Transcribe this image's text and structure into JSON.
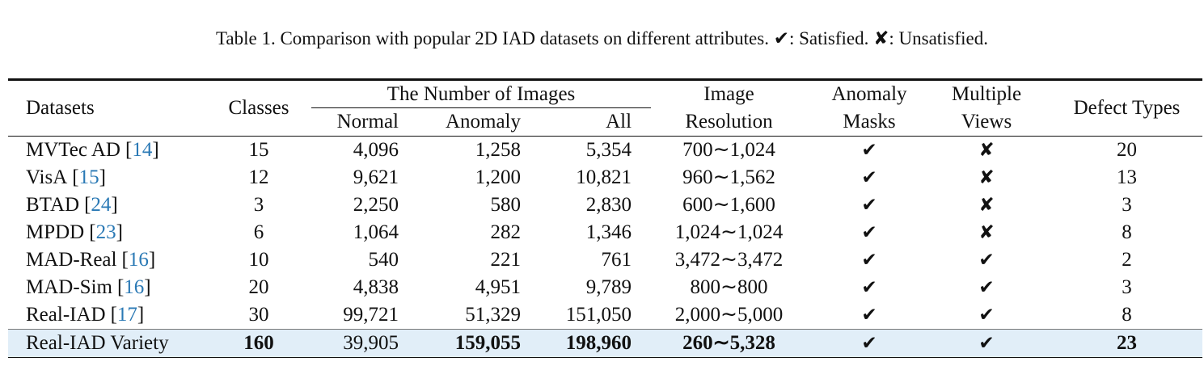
{
  "caption": "Table 1. Comparison with popular 2D IAD datasets on different attributes. ✔: Satisfied. ✘: Unsatisfied.",
  "table": {
    "header": {
      "datasets": "Datasets",
      "classes": "Classes",
      "images_group": "The Number of Images",
      "normal": "Normal",
      "anomaly": "Anomaly",
      "all": "All",
      "resolution": [
        "Image",
        "Resolution"
      ],
      "masks": [
        "Anomaly",
        "Masks"
      ],
      "views": [
        "Multiple",
        "Views"
      ],
      "defect_types": "Defect Types"
    },
    "rows": [
      {
        "name": "MVTec AD",
        "ref": "[14]",
        "cells": [
          "15",
          "4,096",
          "1,258",
          "5,354",
          "700∼1,024",
          "✔",
          "✘",
          "20"
        ]
      },
      {
        "name": "VisA",
        "ref": "[15]",
        "cells": [
          "12",
          "9,621",
          "1,200",
          "10,821",
          "960∼1,562",
          "✔",
          "✘",
          "13"
        ]
      },
      {
        "name": "BTAD",
        "ref": "[24]",
        "cells": [
          "3",
          "2,250",
          "580",
          "2,830",
          "600∼1,600",
          "✔",
          "✘",
          "3"
        ]
      },
      {
        "name": "MPDD",
        "ref": "[23]",
        "cells": [
          "6",
          "1,064",
          "282",
          "1,346",
          "1,024∼1,024",
          "✔",
          "✘",
          "8"
        ]
      },
      {
        "name": "MAD-Real",
        "ref": "[16]",
        "cells": [
          "10",
          "540",
          "221",
          "761",
          "3,472∼3,472",
          "✔",
          "✔",
          "2"
        ]
      },
      {
        "name": "MAD-Sim",
        "ref": "[16]",
        "cells": [
          "20",
          "4,838",
          "4,951",
          "9,789",
          "800∼800",
          "✔",
          "✔",
          "3"
        ]
      },
      {
        "name": "Real-IAD",
        "ref": "[17]",
        "cells": [
          "30",
          "99,721",
          "51,329",
          "151,050",
          "2,000∼5,000",
          "✔",
          "✔",
          "8"
        ]
      },
      {
        "name": "Real-IAD Variety",
        "highlight": true,
        "cells": [
          "160",
          "39,905",
          "159,055",
          "198,960",
          "260∼5,328",
          "✔",
          "✔",
          "23"
        ]
      }
    ]
  }
}
